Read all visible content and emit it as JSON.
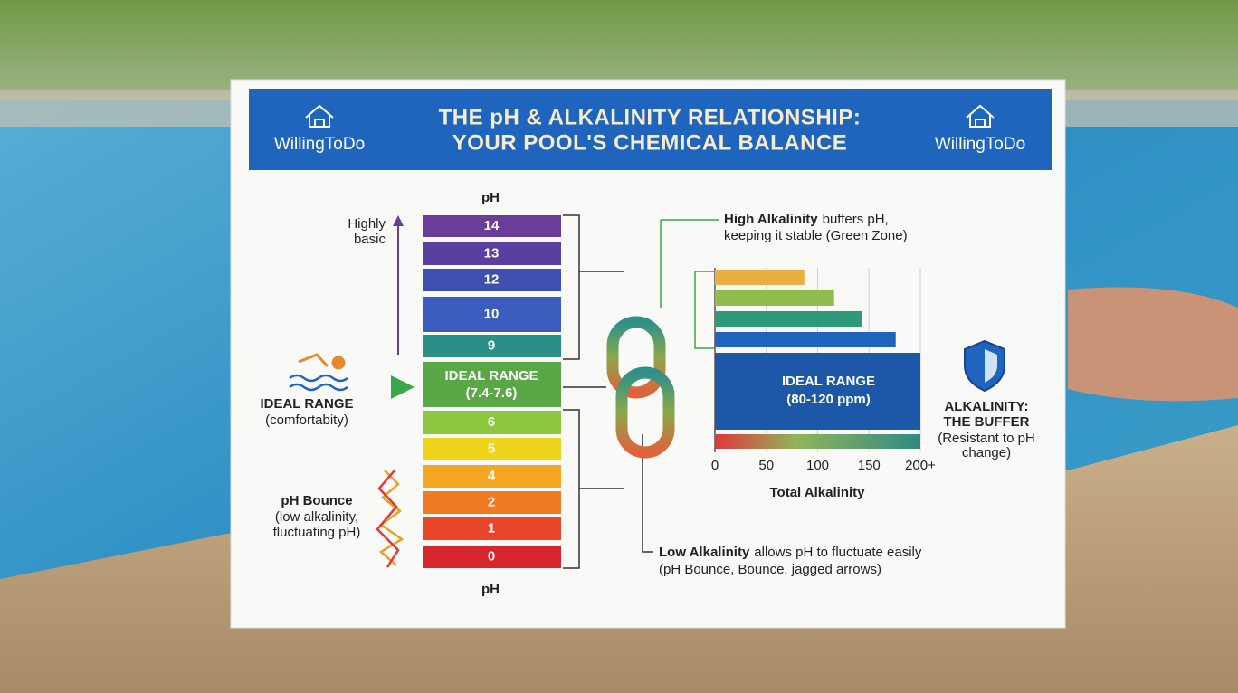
{
  "header": {
    "brand_left": "WillingToDo",
    "title_lines": [
      "THE pH & ALKALINITY RELATIONSHIP:",
      "YOUR POOL'S CHEMICAL BALANCE"
    ],
    "brand_right": "WillingToDo"
  },
  "ph_scale": {
    "top_label": "pH",
    "bottom_label": "pH",
    "levels": [
      {
        "text": "14"
      },
      {
        "text": "13"
      },
      {
        "text": "12"
      },
      {
        "text": "10"
      },
      {
        "text": "9"
      },
      {
        "text": "IDEAL RANGE",
        "subtext": "(7.4-7.6)"
      },
      {
        "text": "6"
      },
      {
        "text": "5"
      },
      {
        "text": "4"
      },
      {
        "text": "2"
      },
      {
        "text": "1"
      },
      {
        "text": "0"
      }
    ]
  },
  "left_notes": {
    "highly_basic": [
      "Highly",
      "basic"
    ],
    "ideal": {
      "title": "IDEAL RANGE",
      "text": "(comfortabity)"
    },
    "bounce": {
      "title": "pH Bounce",
      "lines": [
        "(low alkalinity,",
        "fluctuating pH)"
      ]
    }
  },
  "high_note": {
    "bold": "High Alkalinity",
    "text": "buffers pH,",
    "line2": "keeping it stable (Green Zone)"
  },
  "low_note": {
    "bold": "Low Alkalinity",
    "text": "allows pH to fluctuate easily",
    "line2": "(pH Bounce, Bounce, jagged arrows)"
  },
  "alkalinity_chart": {
    "bars": [
      87,
      116,
      143,
      176
    ],
    "ideal_label": [
      "IDEAL RANGE",
      "(80-120 ppm)"
    ],
    "xlim": [
      0,
      200
    ],
    "xticks": [
      0,
      50,
      100,
      150,
      {
        "value": 200,
        "label": "200+"
      }
    ],
    "xlabel": "Total Alkalinity"
  },
  "buffer_note": {
    "title": [
      "ALKALINITY:",
      "THE BUFFER"
    ],
    "lines": [
      "(Resistant to pH",
      "change)"
    ]
  }
}
